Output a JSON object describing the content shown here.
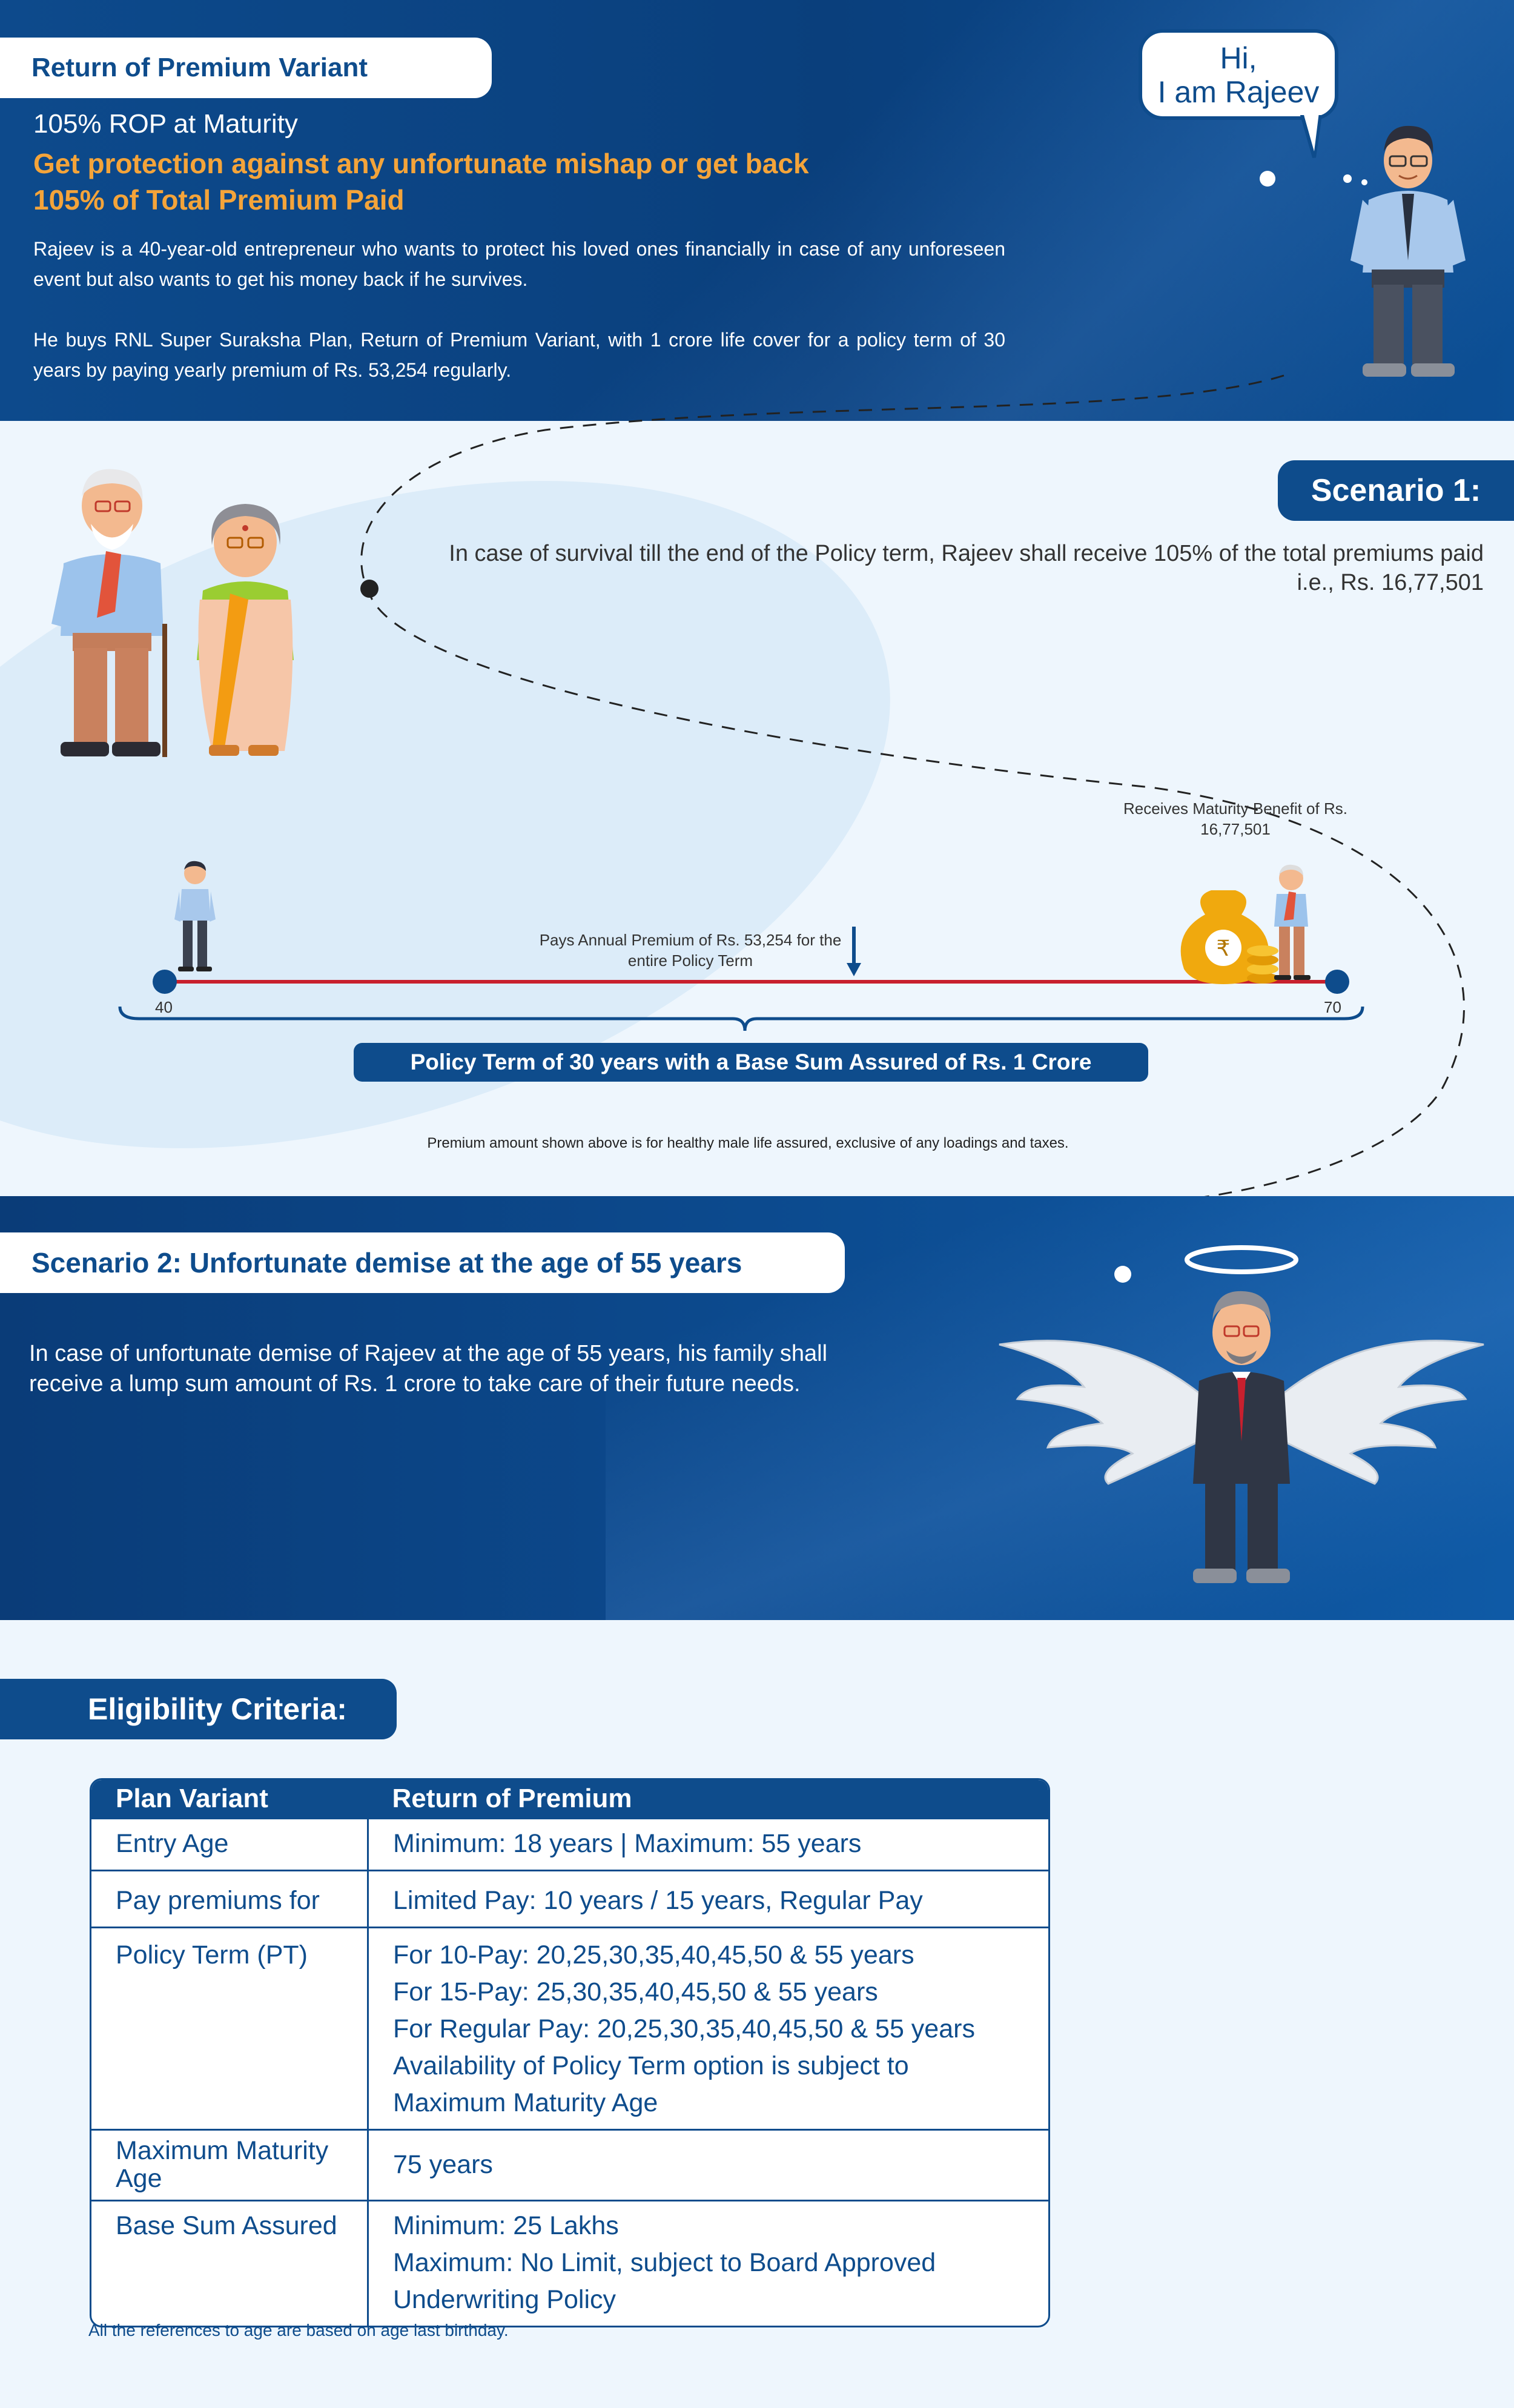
{
  "header": {
    "title": "Return of Premium Variant",
    "subtitle": "105% ROP at Maturity",
    "headline": "Get protection against any unfortunate mishap or get back 105% of Total Premium Paid",
    "intro_1": "Rajeev is a 40-year-old entrepreneur who wants to protect his loved ones financially in case of any unforeseen event but also wants to get his money back if he survives.",
    "intro_2": "He buys RNL Super Suraksha Plan, Return of Premium Variant, with 1 crore life cover for a policy term of 30 years by paying yearly premium of Rs. 53,254 regularly.",
    "speech_line1": "Hi,",
    "speech_line2": "I am Rajeev"
  },
  "scenario1": {
    "label": "Scenario 1:",
    "text": "In case of survival till the end of the Policy term, Rajeev shall receive 105% of the total premiums paid i.e., Rs. 16,77,501",
    "maturity_label": "Receives Maturity Benefit of Rs. 16,77,501",
    "pays_label": "Pays Annual Premium of Rs. 53,254 for the entire Policy Term",
    "start_age": "40",
    "end_age": "70",
    "term_banner": "Policy Term of 30 years with a Base Sum Assured of Rs. 1 Crore",
    "premium_note": "Premium amount shown above is for healthy male life assured, exclusive of any loadings and taxes.",
    "coin_symbol": "₹"
  },
  "scenario2": {
    "label": "Scenario 2: Unfortunate demise at the age of 55 years",
    "text": "In case of unfortunate demise of Rajeev at the age of 55 years, his family shall receive a lump sum amount of Rs. 1 crore to take care of their future needs."
  },
  "eligibility": {
    "title": "Eligibility Criteria:",
    "headers": [
      "Plan Variant",
      "Return of Premium"
    ],
    "rows": [
      {
        "label": "Entry Age",
        "lines": [
          "Minimum: 18 years | Maximum: 55 years"
        ]
      },
      {
        "label": "Pay premiums for",
        "lines": [
          "Limited Pay: 10 years / 15 years, Regular Pay"
        ]
      },
      {
        "label": "Policy Term (PT)",
        "lines": [
          "For 10-Pay: 20,25,30,35,40,45,50 & 55 years",
          "For 15-Pay: 25,30,35,40,45,50 & 55 years",
          "For Regular Pay: 20,25,30,35,40,45,50 & 55 years",
          "Availability of Policy Term option is subject to",
          "Maximum Maturity Age"
        ]
      },
      {
        "label": "Maximum Maturity Age",
        "lines": [
          "75 years"
        ]
      },
      {
        "label": "Base Sum Assured",
        "lines": [
          "Minimum: 25 Lakhs",
          "Maximum: No Limit, subject to Board Approved",
          "Underwriting Policy"
        ]
      }
    ],
    "footnote": "All the references to age are based on age last birthday."
  },
  "colors": {
    "brand_blue": "#0e4c8c",
    "accent_orange": "#f4a43a",
    "timeline_red": "#c8202e"
  },
  "icons": [
    "rupee-bag-icon",
    "coins-icon",
    "down-arrow-icon",
    "halo-icon",
    "wings-icon"
  ]
}
